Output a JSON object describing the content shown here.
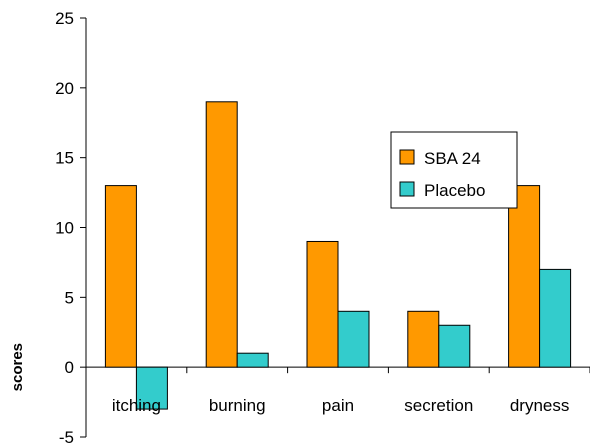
{
  "chart_data": {
    "type": "bar",
    "title": "",
    "xlabel": "",
    "ylabel": "scores",
    "categories": [
      "itching",
      "burning",
      "pain",
      "secretion",
      "dryness"
    ],
    "series": [
      {
        "name": "SBA 24",
        "values": [
          13,
          19,
          9,
          4,
          13
        ],
        "color": "#FF9900"
      },
      {
        "name": "Placebo",
        "values": [
          -3,
          1,
          4,
          3,
          7
        ],
        "color": "#33CCCC"
      }
    ],
    "ylim": [
      -5,
      25
    ],
    "yticks": [
      "-5",
      "0",
      "5",
      "10",
      "15",
      "20",
      "25"
    ],
    "grid": false,
    "legend": "top-right"
  }
}
